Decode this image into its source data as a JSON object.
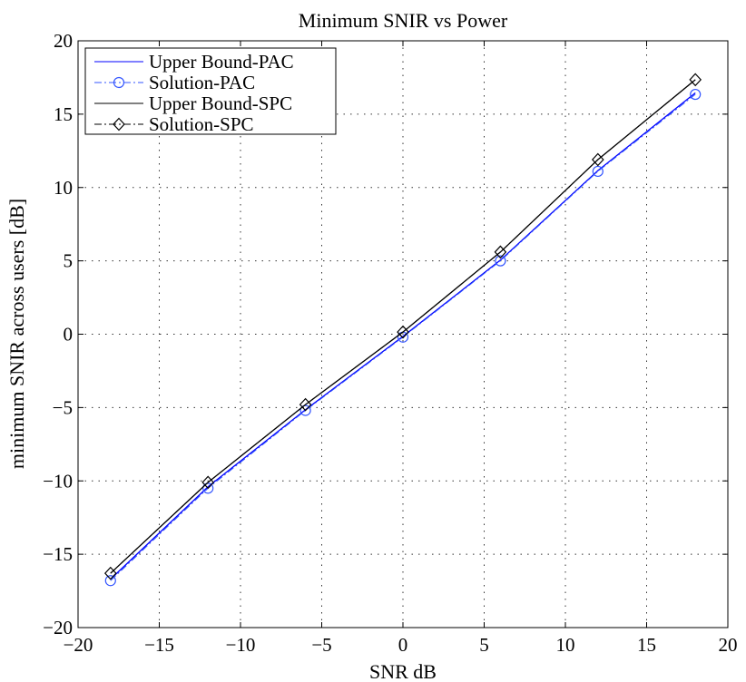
{
  "chart_data": {
    "type": "line",
    "title": "Minimum SNIR vs Power",
    "xlabel": "SNR dB",
    "ylabel": "minimum SNIR across users [dB]",
    "xlim": [
      -20,
      20
    ],
    "ylim": [
      -20,
      20
    ],
    "xticks": [
      -20,
      -15,
      -10,
      -5,
      0,
      5,
      10,
      15,
      20
    ],
    "yticks": [
      -20,
      -15,
      -10,
      -5,
      0,
      5,
      10,
      15,
      20
    ],
    "xtick_labels": [
      "−20",
      "−15",
      "−10",
      "−5",
      "0",
      "5",
      "10",
      "15",
      "20"
    ],
    "ytick_labels": [
      "−20",
      "−15",
      "−10",
      "−5",
      "0",
      "5",
      "10",
      "15",
      "20"
    ],
    "grid": true,
    "legend_position": "top-left",
    "x": [
      -18,
      -12,
      -6,
      0,
      6,
      12,
      18
    ],
    "series": [
      {
        "name": "Upper Bound-PAC",
        "values": [
          -16.7,
          -10.4,
          -5.15,
          -0.15,
          5.05,
          11.15,
          16.45
        ],
        "color": "#0000ff",
        "dash": "solid",
        "marker": "none"
      },
      {
        "name": "Solution-PAC",
        "values": [
          -16.8,
          -10.5,
          -5.2,
          -0.2,
          5.0,
          11.1,
          16.35
        ],
        "color": "#3355ff",
        "dash": "dashdot",
        "marker": "circle"
      },
      {
        "name": "Upper Bound-SPC",
        "values": [
          -16.3,
          -10.1,
          -4.8,
          0.15,
          5.6,
          11.9,
          17.35
        ],
        "color": "#000000",
        "dash": "solid",
        "marker": "none"
      },
      {
        "name": "Solution-SPC",
        "values": [
          -16.3,
          -10.1,
          -4.8,
          0.15,
          5.6,
          11.9,
          17.35
        ],
        "color": "#000000",
        "dash": "dashdot",
        "marker": "diamond"
      }
    ]
  }
}
